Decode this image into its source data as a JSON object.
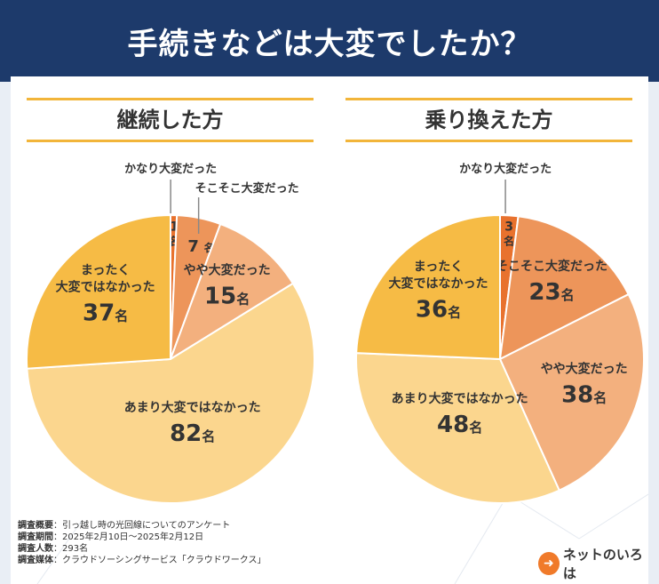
{
  "header": {
    "title": "手続きなどは大変でしたか？"
  },
  "chart_data": [
    {
      "type": "pie",
      "title": "継続した方",
      "unit": "名",
      "categories": [
        "かなり大変だった",
        "そこそこ大変だった",
        "やや大変だった",
        "あまり大変ではなかった",
        "まったく大変ではなかった"
      ],
      "values": [
        1,
        7,
        15,
        82,
        37
      ],
      "colors": [
        "#e8722e",
        "#ed955a",
        "#f3b07e",
        "#fbd68e",
        "#f6bb45"
      ]
    },
    {
      "type": "pie",
      "title": "乗り換えた方",
      "unit": "名",
      "categories": [
        "かなり大変だった",
        "そこそこ大変だった",
        "やや大変だった",
        "あまり大変ではなかった",
        "まったく大変ではなかった"
      ],
      "values": [
        3,
        23,
        38,
        48,
        36
      ],
      "colors": [
        "#e8722e",
        "#ed955a",
        "#f3b07e",
        "#fbd68e",
        "#f6bb45"
      ]
    }
  ],
  "footnote": {
    "rows": [
      {
        "key": "調査概要",
        "value": "：引っ越し時の光回線についてのアンケート"
      },
      {
        "key": "調査期間",
        "value": "：2025年2月10日～2025年2月12日"
      },
      {
        "key": "調査人数",
        "value": "：293名"
      },
      {
        "key": "調査媒体",
        "value": "：クラウドソーシングサービス「クラウドワークス」"
      }
    ]
  },
  "logo": {
    "mark": "➜",
    "text": "ネットのいろは"
  }
}
